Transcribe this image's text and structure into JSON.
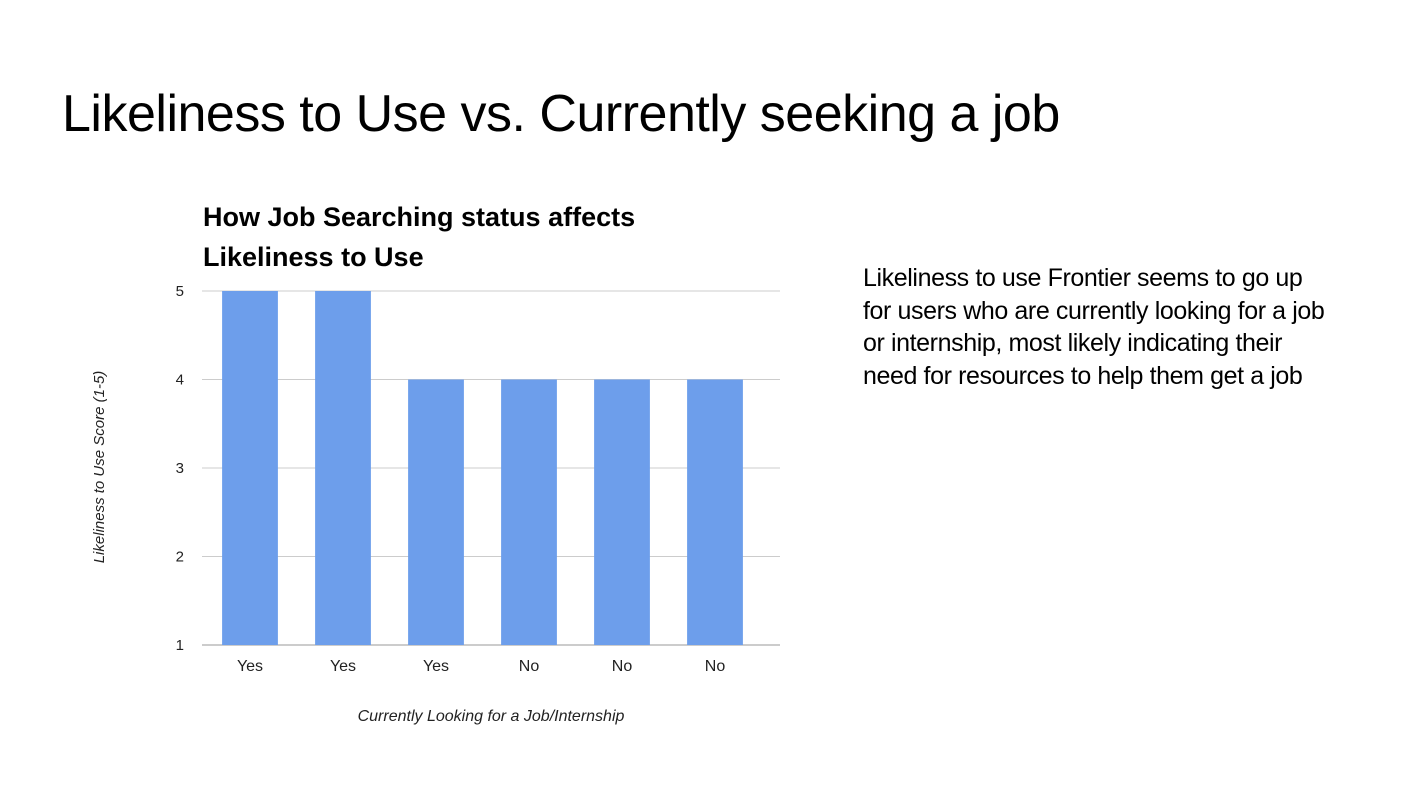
{
  "slide": {
    "title": "Likeliness to Use vs. Currently seeking a job",
    "body_text": "Likeliness to use Frontier seems to go up for users who are currently looking for a job or internship, most likely indicating their need for resources to help them get a job"
  },
  "chart_data": {
    "type": "bar",
    "title_lines": [
      "How Job Searching status affects",
      "Likeliness to Use"
    ],
    "categories": [
      "Yes",
      "Yes",
      "Yes",
      "No",
      "No",
      "No"
    ],
    "values": [
      5,
      5,
      4,
      4,
      4,
      4
    ],
    "xlabel": "Currently Looking for a Job/Internship",
    "ylabel": "Likeliness to Use Score (1-5)",
    "ylim": [
      1,
      5
    ],
    "yticks": [
      1,
      2,
      3,
      4,
      5
    ],
    "grid": true,
    "legend": "none",
    "bar_color": "#6d9eeb",
    "grid_color": "#cccccc"
  }
}
